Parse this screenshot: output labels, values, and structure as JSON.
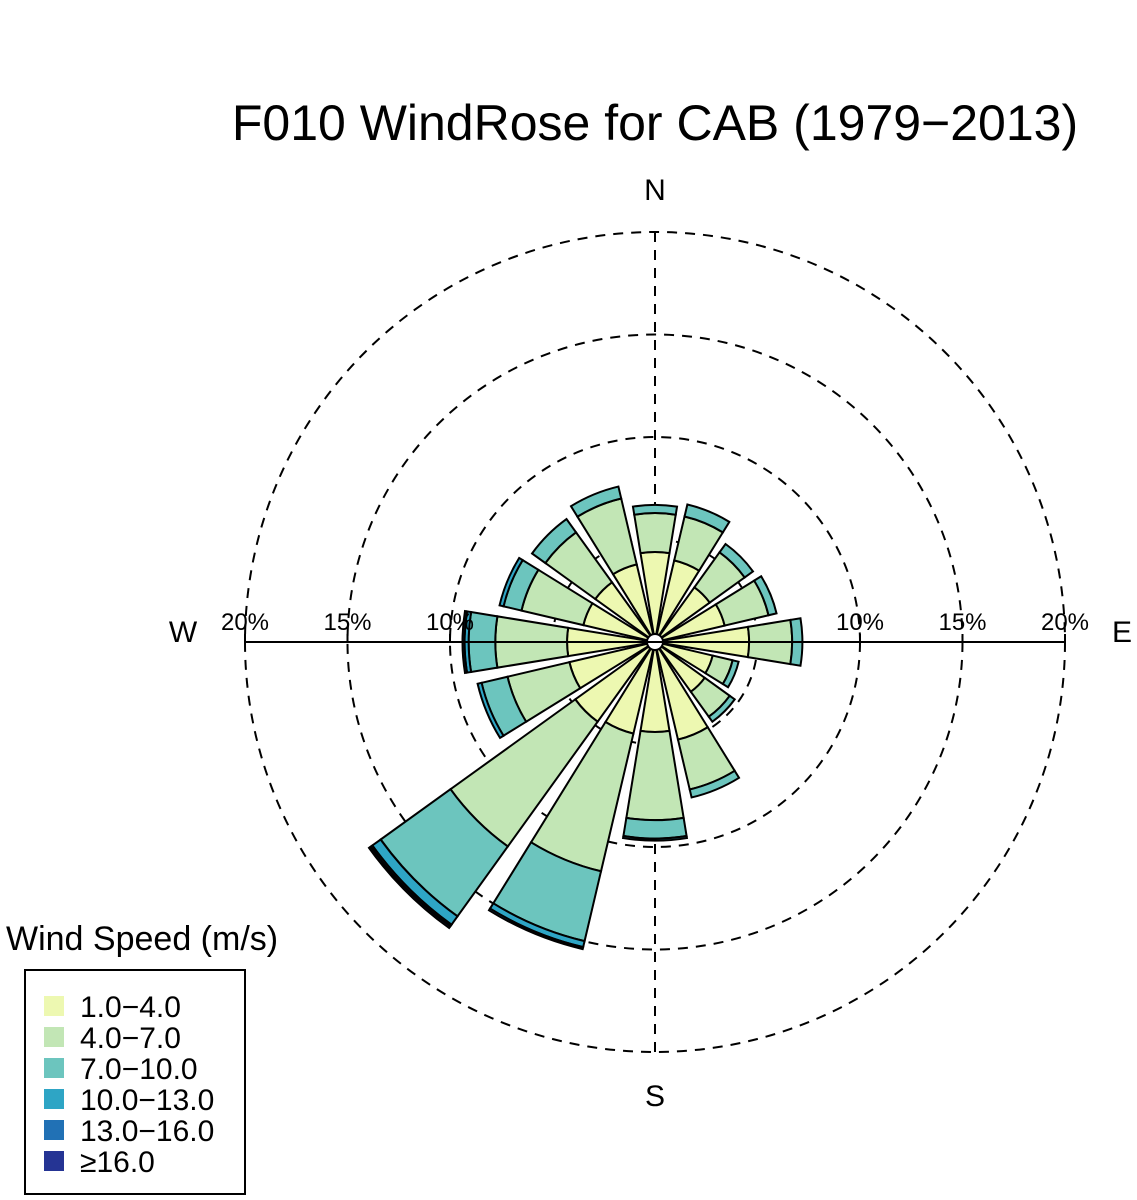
{
  "chart_data": {
    "type": "windrose",
    "title": "F010 WindRose for CAB (1979−2013)",
    "directions": [
      "N",
      "NNE",
      "NE",
      "ENE",
      "E",
      "ESE",
      "SE",
      "SSE",
      "S",
      "SSW",
      "SW",
      "WSW",
      "W",
      "WNW",
      "NW",
      "NNW"
    ],
    "compass_labels": {
      "n": "N",
      "e": "E",
      "s": "S",
      "w": "W"
    },
    "radial_ticks": [
      "10%",
      "15%",
      "20%",
      "10%",
      "15%",
      "20%"
    ],
    "radial_tick_values": [
      10,
      15,
      20
    ],
    "radial_max": 20,
    "grid": true,
    "legend": {
      "title": "Wind Speed (m/s)",
      "placement": "bottom-left",
      "items": [
        "1.0−4.0",
        "4.0−7.0",
        "7.0−10.0",
        "10.0−13.0",
        "13.0−16.0",
        "≥16.0"
      ]
    },
    "colors": [
      "#edf8b1",
      "#c2e6b5",
      "#6cc5be",
      "#2ea5c5",
      "#2171b5",
      "#253494"
    ],
    "series": [
      {
        "name": "1.0−4.0",
        "values": [
          4.0,
          3.7,
          2.9,
          3.1,
          4.2,
          2.5,
          2.6,
          4.5,
          4.0,
          4.2,
          4.4,
          3.9,
          3.9,
          3.2,
          3.2,
          3.5
        ]
      },
      {
        "name": "4.0−7.0",
        "values": [
          1.9,
          2.2,
          2.1,
          2.2,
          2.1,
          1.0,
          1.5,
          2.5,
          4.3,
          6.9,
          7.5,
          3.1,
          3.5,
          3.1,
          3.0,
          3.3
        ]
      },
      {
        "name": "7.0−10.0",
        "values": [
          0.4,
          0.6,
          0.5,
          0.4,
          0.5,
          0.3,
          0.3,
          0.4,
          0.9,
          3.5,
          4.2,
          1.3,
          1.3,
          0.9,
          0.8,
          0.6
        ]
      },
      {
        "name": "10.0−13.0",
        "values": [
          0.0,
          0.0,
          0.0,
          0.0,
          0.0,
          0.0,
          0.0,
          0.0,
          0.1,
          0.3,
          0.5,
          0.2,
          0.2,
          0.2,
          0.0,
          0.0
        ]
      },
      {
        "name": "13.0−16.0",
        "values": [
          0.0,
          0.0,
          0.0,
          0.0,
          0.0,
          0.0,
          0.0,
          0.0,
          0.0,
          0.1,
          0.1,
          0.0,
          0.1,
          0.0,
          0.0,
          0.0
        ]
      },
      {
        "name": "≥16.0",
        "values": [
          0.0,
          0.0,
          0.0,
          0.0,
          0.0,
          0.0,
          0.0,
          0.0,
          0.0,
          0.0,
          0.1,
          0.0,
          0.0,
          0.0,
          0.0,
          0.0
        ]
      }
    ]
  }
}
